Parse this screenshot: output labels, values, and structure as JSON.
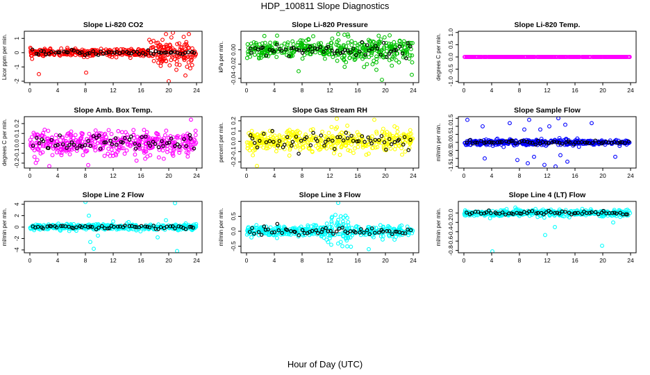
{
  "figure": {
    "title": "HDP_100811  Slope Diagnostics",
    "xlabel": "Hour of Day (UTC)"
  },
  "chart_data": [
    {
      "type": "scatter",
      "title": "Slope Li-820 CO2",
      "ylabel": "Licor ppm per min.",
      "xlim": [
        0,
        24
      ],
      "ylim": [
        -2.1,
        1.5
      ],
      "yticks": [
        -2,
        -1,
        0,
        1
      ],
      "xticks": [
        0,
        4,
        8,
        12,
        16,
        20,
        24
      ],
      "color": "#ff0000",
      "spread": 0.18,
      "outliers": [
        [
          8.1,
          -1.4
        ],
        [
          1.3,
          -1.5
        ],
        [
          19.6,
          1.3
        ],
        [
          20.6,
          1.4
        ],
        [
          20.0,
          -2.0
        ],
        [
          22.4,
          -1.6
        ],
        [
          21.1,
          -1.2
        ],
        [
          19.1,
          0.9
        ],
        [
          18.5,
          -0.7
        ],
        [
          23.1,
          -1.1
        ],
        [
          17.2,
          0.9
        ],
        [
          22.9,
          1.3
        ]
      ],
      "wide_range": [
        17,
        24
      ],
      "wide_spread": 0.55
    },
    {
      "type": "scatter",
      "title": "Slope Li-820 Pressure",
      "ylabel": "kPa per min.",
      "xlim": [
        0,
        24
      ],
      "ylim": [
        -0.046,
        0.026
      ],
      "yticks": [
        -0.04,
        -0.02,
        0.0
      ],
      "xticks": [
        0,
        4,
        8,
        12,
        16,
        20,
        24
      ],
      "color": "#00c000",
      "spread": 0.009,
      "outliers": [
        [
          7.5,
          -0.03
        ],
        [
          23.8,
          -0.035
        ],
        [
          13.2,
          0.022
        ],
        [
          14.1,
          0.021
        ],
        [
          18.7,
          -0.028
        ],
        [
          9.6,
          0.019
        ],
        [
          19.5,
          -0.042
        ]
      ],
      "wide_range": [
        13,
        24
      ],
      "wide_spread": 0.012
    },
    {
      "type": "scatter",
      "title": "Slope Li-820 Temp.",
      "ylabel": "degrees C per min.",
      "xlim": [
        0,
        24
      ],
      "ylim": [
        -1.05,
        1.05
      ],
      "yticks": [
        -1.0,
        -0.5,
        0.0,
        0.5,
        1.0
      ],
      "xticks": [
        0,
        4,
        8,
        12,
        16,
        20,
        24
      ],
      "color": "#ff00ff",
      "spread": 0.0,
      "flat": true
    },
    {
      "type": "scatter",
      "title": "Slope Amb. Box Temp.",
      "ylabel": "degrees C per min.",
      "xlim": [
        0,
        24
      ],
      "ylim": [
        -0.25,
        0.27
      ],
      "yticks": [
        -0.2,
        -0.1,
        0.0,
        0.1,
        0.2
      ],
      "xticks": [
        0,
        4,
        8,
        12,
        16,
        20,
        24
      ],
      "color": "#ff00ff",
      "spread": 0.085,
      "outliers": [
        [
          2.8,
          -0.23
        ],
        [
          8.4,
          -0.22
        ],
        [
          23.2,
          0.24
        ]
      ]
    },
    {
      "type": "scatter",
      "title": "Slope Gas Stream RH",
      "ylabel": "percent per min.",
      "xlim": [
        0,
        24
      ],
      "ylim": [
        -0.26,
        0.24
      ],
      "yticks": [
        -0.2,
        -0.1,
        0.0,
        0.1,
        0.2
      ],
      "xticks": [
        0,
        4,
        8,
        12,
        16,
        20,
        24
      ],
      "color": "#ffff00",
      "spread": 0.08,
      "outliers": [
        [
          1.5,
          -0.24
        ],
        [
          13.0,
          0.22
        ],
        [
          18.4,
          0.21
        ]
      ]
    },
    {
      "type": "scatter",
      "title": "Slope Sample Flow",
      "ylabel": "ml/min per min.",
      "xlim": [
        0,
        24
      ],
      "ylim": [
        -1.6,
        1.6
      ],
      "yticks": [
        -1.5,
        -1.0,
        -0.5,
        0.0,
        0.5,
        1.0,
        1.5
      ],
      "xticks": [
        0,
        4,
        8,
        12,
        16,
        20,
        24
      ],
      "color": "#0000ff",
      "spread": 0.12,
      "outliers": [
        [
          0.5,
          1.4
        ],
        [
          2.7,
          1.0
        ],
        [
          3.0,
          -1.0
        ],
        [
          6.6,
          1.2
        ],
        [
          7.7,
          -1.1
        ],
        [
          9.4,
          1.4
        ],
        [
          9.2,
          -1.3
        ],
        [
          10.1,
          -0.9
        ],
        [
          11.6,
          -1.4
        ],
        [
          12.3,
          1.0
        ],
        [
          13.2,
          -1.5
        ],
        [
          13.6,
          1.5
        ],
        [
          14.6,
          1.1
        ],
        [
          14.9,
          -1.2
        ],
        [
          18.4,
          1.2
        ],
        [
          21.8,
          -0.9
        ],
        [
          8.7,
          0.8
        ],
        [
          11.0,
          0.8
        ],
        [
          13.9,
          -0.8
        ]
      ]
    },
    {
      "type": "scatter",
      "title": "Slope Line 2 Flow",
      "ylabel": "ml/min per min.",
      "xlim": [
        0,
        24
      ],
      "ylim": [
        -4.5,
        4.5
      ],
      "yticks": [
        -4,
        -2,
        0,
        2,
        4
      ],
      "xticks": [
        0,
        4,
        8,
        12,
        16,
        20,
        24
      ],
      "color": "#00ffff",
      "spread": 0.35,
      "outliers": [
        [
          8.0,
          4.4
        ],
        [
          9.2,
          -3.8
        ],
        [
          8.7,
          -2.6
        ],
        [
          9.8,
          -1.5
        ],
        [
          18.4,
          -1.8
        ],
        [
          20.9,
          4.2
        ],
        [
          21.2,
          -4.2
        ],
        [
          19.6,
          1.2
        ],
        [
          12.0,
          1.0
        ],
        [
          8.5,
          2.0
        ]
      ]
    },
    {
      "type": "scatter",
      "title": "Slope Line 3 Flow",
      "ylabel": "ml/min per min.",
      "xlim": [
        0,
        24
      ],
      "ylim": [
        -0.72,
        1.0
      ],
      "yticks": [
        -0.5,
        0.0,
        0.5
      ],
      "xticks": [
        0,
        4,
        8,
        12,
        16,
        20,
        24
      ],
      "color": "#00ffff",
      "spread": 0.13,
      "outliers": [
        [
          13.2,
          0.95
        ],
        [
          12.2,
          -0.45
        ],
        [
          13.8,
          -0.5
        ],
        [
          14.5,
          0.45
        ],
        [
          12.8,
          0.55
        ],
        [
          17.6,
          -0.6
        ]
      ],
      "wide_range": [
        11.5,
        15.5
      ],
      "wide_spread": 0.3
    },
    {
      "type": "scatter",
      "title": "Slope Line 4 (LT) Flow",
      "ylabel": "ml/min per min.",
      "xlim": [
        0,
        24
      ],
      "ylim": [
        -0.85,
        0.25
      ],
      "yticks": [
        -0.8,
        -0.6,
        -0.4,
        -0.2,
        0.0
      ],
      "xticks": [
        0,
        4,
        8,
        12,
        16,
        20,
        24
      ],
      "color": "#00ffff",
      "spread": 0.05,
      "outliers": [
        [
          4.1,
          -0.82
        ],
        [
          11.7,
          -0.47
        ],
        [
          19.9,
          -0.7
        ],
        [
          13.1,
          -0.3
        ],
        [
          21.5,
          -0.2
        ]
      ]
    }
  ]
}
